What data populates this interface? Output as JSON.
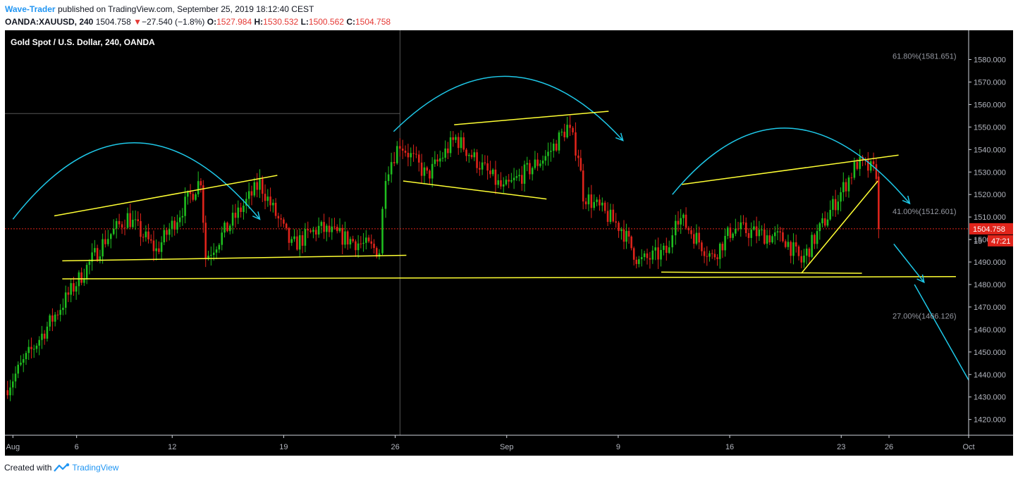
{
  "header": {
    "author": "Wave-Trader",
    "published": "published on TradingView.com, September 25, 2019 18:12:40 CEST",
    "symbol": "OANDA:XAUUSD, 240",
    "last": "1504.758",
    "arrow": "▼",
    "change": "−27.540 (−1.8%)",
    "o_label": "O:",
    "o_value": "1527.984",
    "h_label": "H:",
    "h_value": "1530.532",
    "l_label": "L:",
    "l_value": "1500.562",
    "c_label": "C:",
    "c_value": "1504.758"
  },
  "footer": {
    "created": "Created with",
    "brand": "TradingView"
  },
  "colors": {
    "background": "#000000",
    "up": "#1fbe1f",
    "down": "#e0241b",
    "arc": "#1ec8e8",
    "trend": "#ffff33",
    "price_label": "#e0241b",
    "axis_text": "#b2b5be"
  },
  "chart_data": {
    "type": "candlestick",
    "title": "Gold Spot / U.S. Dollar, 240, OANDA",
    "ylim": [
      1413,
      1593
    ],
    "xlim": [
      -0.5,
      60
    ],
    "y_ticks": [
      1420,
      1430,
      1440,
      1450,
      1460,
      1470,
      1480,
      1490,
      1500,
      1510,
      1520,
      1530,
      1540,
      1550,
      1560,
      1570,
      1580
    ],
    "y_tick_labels": [
      "1420.000",
      "1430.000",
      "1440.000",
      "1450.000",
      "1460.000",
      "1470.000",
      "1480.000",
      "1490.000",
      "1500.000",
      "1510.000",
      "1520.000",
      "1530.000",
      "1540.000",
      "1550.000",
      "1560.000",
      "1570.000",
      "1580.000"
    ],
    "x_ticks": [
      {
        "day": 0,
        "label": "Aug"
      },
      {
        "day": 4,
        "label": "6"
      },
      {
        "day": 10,
        "label": "12"
      },
      {
        "day": 17,
        "label": "19"
      },
      {
        "day": 24,
        "label": "26"
      },
      {
        "day": 31,
        "label": "Sep"
      },
      {
        "day": 38,
        "label": "9"
      },
      {
        "day": 45,
        "label": "16"
      },
      {
        "day": 52,
        "label": "23"
      },
      {
        "day": 55,
        "label": "26"
      },
      {
        "day": 60,
        "label": "Oct"
      }
    ],
    "current_price": {
      "value": 1504.758,
      "label": "1504.758",
      "countdown": "47:21",
      "partial_tick": "15"
    },
    "fib_levels": [
      {
        "value": 1581.651,
        "label": "61.80%(1581.651)"
      },
      {
        "value": 1512.601,
        "label": "41.00%(1512.601)"
      },
      {
        "value": 1466.126,
        "label": "27.00%(1466.126)"
      }
    ],
    "ref_line": {
      "value": 1556,
      "start_day": -0.5,
      "end_day": 24.3
    },
    "vertical_line_day": 24.3,
    "candle_days_per_bar": 0.1667,
    "segments": [
      {
        "start_day": -0.5,
        "end_day": 5.8,
        "start_price": 1433,
        "end_price": 1500
      },
      {
        "start_day": 5.8,
        "end_day": 7.2,
        "start_price": 1500,
        "end_price": 1510
      },
      {
        "start_day": 7.2,
        "end_day": 9.0,
        "start_price": 1510,
        "end_price": 1495
      },
      {
        "start_day": 9.0,
        "end_day": 11.8,
        "start_price": 1495,
        "end_price": 1527
      },
      {
        "start_day": 11.8,
        "end_day": 12.1,
        "start_price": 1527,
        "end_price": 1492
      },
      {
        "start_day": 12.1,
        "end_day": 15.5,
        "start_price": 1492,
        "end_price": 1525
      },
      {
        "start_day": 15.5,
        "end_day": 17.5,
        "start_price": 1525,
        "end_price": 1497
      },
      {
        "start_day": 17.5,
        "end_day": 19.2,
        "start_price": 1497,
        "end_price": 1505
      },
      {
        "start_day": 19.2,
        "end_day": 23.0,
        "start_price": 1505,
        "end_price": 1495
      },
      {
        "start_day": 23.0,
        "end_day": 23.4,
        "start_price": 1495,
        "end_price": 1530
      },
      {
        "start_day": 23.4,
        "end_day": 24.3,
        "start_price": 1530,
        "end_price": 1543
      },
      {
        "start_day": 24.3,
        "end_day": 26.0,
        "start_price": 1543,
        "end_price": 1528
      },
      {
        "start_day": 26.0,
        "end_day": 27.8,
        "start_price": 1528,
        "end_price": 1545
      },
      {
        "start_day": 27.8,
        "end_day": 30.8,
        "start_price": 1545,
        "end_price": 1522
      },
      {
        "start_day": 30.8,
        "end_day": 33.6,
        "start_price": 1522,
        "end_price": 1538
      },
      {
        "start_day": 33.6,
        "end_day": 34.8,
        "start_price": 1538,
        "end_price": 1550
      },
      {
        "start_day": 34.8,
        "end_day": 35.5,
        "start_price": 1550,
        "end_price": 1538
      },
      {
        "start_day": 35.5,
        "end_day": 35.8,
        "start_price": 1538,
        "end_price": 1520
      },
      {
        "start_day": 35.8,
        "end_day": 38.2,
        "start_price": 1520,
        "end_price": 1505
      },
      {
        "start_day": 38.2,
        "end_day": 39.3,
        "start_price": 1505,
        "end_price": 1490
      },
      {
        "start_day": 39.3,
        "end_day": 41.2,
        "start_price": 1490,
        "end_price": 1495
      },
      {
        "start_day": 41.2,
        "end_day": 41.6,
        "start_price": 1495,
        "end_price": 1512
      },
      {
        "start_day": 41.6,
        "end_day": 43.9,
        "start_price": 1512,
        "end_price": 1492
      },
      {
        "start_day": 43.9,
        "end_day": 45.2,
        "start_price": 1492,
        "end_price": 1505
      },
      {
        "start_day": 45.2,
        "end_day": 48.5,
        "start_price": 1505,
        "end_price": 1500
      },
      {
        "start_day": 48.5,
        "end_day": 49.5,
        "start_price": 1500,
        "end_price": 1490
      },
      {
        "start_day": 49.5,
        "end_day": 52.3,
        "start_price": 1490,
        "end_price": 1525
      },
      {
        "start_day": 52.3,
        "end_day": 53.0,
        "start_price": 1525,
        "end_price": 1534
      },
      {
        "start_day": 53.0,
        "end_day": 54.2,
        "start_price": 1534,
        "end_price": 1530
      }
    ],
    "final_candle": {
      "day": 54.35,
      "open": 1527.984,
      "high": 1530.532,
      "low": 1500.562,
      "close": 1504.758
    },
    "arcs": [
      {
        "start": [
          0,
          1509
        ],
        "control": [
          7.5,
          1577
        ],
        "end": [
          15.5,
          1509
        ]
      },
      {
        "start": [
          23.9,
          1548
        ],
        "control": [
          31.2,
          1599
        ],
        "end": [
          38.3,
          1544
        ]
      },
      {
        "start": [
          41.4,
          1520
        ],
        "control": [
          48.5,
          1581
        ],
        "end": [
          56.3,
          1516
        ]
      }
    ],
    "trendlines": [
      {
        "p1": [
          2.6,
          1510.5
        ],
        "p2": [
          16.6,
          1528.5
        ]
      },
      {
        "p1": [
          3.1,
          1490.5
        ],
        "p2": [
          24.7,
          1493
        ]
      },
      {
        "p1": [
          24.5,
          1526
        ],
        "p2": [
          33.5,
          1518
        ]
      },
      {
        "p1": [
          27.7,
          1551
        ],
        "p2": [
          37.4,
          1557
        ]
      },
      {
        "p1": [
          42.0,
          1524.5
        ],
        "p2": [
          55.6,
          1537.5
        ]
      },
      {
        "p1": [
          40.7,
          1485.5
        ],
        "p2": [
          53.3,
          1485
        ]
      },
      {
        "p1": [
          49.5,
          1485
        ],
        "p2": [
          54.3,
          1526
        ]
      },
      {
        "p1": [
          3.1,
          1482.5
        ],
        "p2": [
          59.2,
          1483.5
        ]
      }
    ],
    "forecast_arrows": [
      {
        "from": [
          55.3,
          1498
        ],
        "to": [
          57.2,
          1481
        ]
      },
      {
        "from": [
          56.6,
          1480
        ],
        "to": [
          61.0,
          1425
        ]
      }
    ]
  }
}
